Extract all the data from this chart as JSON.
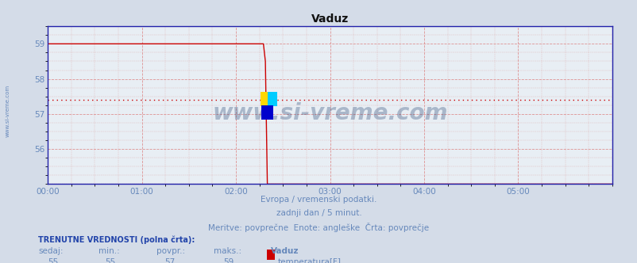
{
  "title": "Vaduz",
  "bg_color": "#d4dce8",
  "plot_bg_color": "#e8eef4",
  "grid_major_color": "#dd8888",
  "grid_minor_color": "#ddaaaa",
  "line_color": "#cc0000",
  "avg_line_color": "#cc0000",
  "avg_line_value": 57.4,
  "spine_color": "#2222aa",
  "x_min": 0,
  "x_max": 288,
  "y_min": 55.0,
  "y_max": 59.5,
  "y_ticks": [
    56,
    57,
    58,
    59
  ],
  "x_tick_labels": [
    "00:00",
    "01:00",
    "02:00",
    "03:00",
    "04:00",
    "05:00"
  ],
  "x_tick_positions": [
    0,
    48,
    96,
    144,
    192,
    240
  ],
  "drop_x": 110,
  "drop_x2": 113,
  "val_high": 59,
  "val_low": 55,
  "subtitle1": "Evropa / vremenski podatki.",
  "subtitle2": "zadnji dan / 5 minut.",
  "subtitle3": "Meritve: povprečne  Enote: angleške  Črta: povprečje",
  "text_color": "#6688bb",
  "dark_text_color": "#2244aa",
  "label_bold": "TRENUTNE VREDNOSTI (polna črta):",
  "label_sedaj": "sedaj:",
  "label_min": "min.:",
  "label_povpr": "povpr.:",
  "label_maks": "maks.:",
  "label_station": "Vaduz",
  "val_sedaj": 55,
  "val_min": 55,
  "val_povpr": 57,
  "val_maks": 59,
  "legend_label": "temperatura[F]",
  "legend_color": "#cc0000",
  "watermark": "www.si-vreme.com",
  "watermark_color": "#1a3a6a",
  "left_label": "www.si-vreme.com"
}
